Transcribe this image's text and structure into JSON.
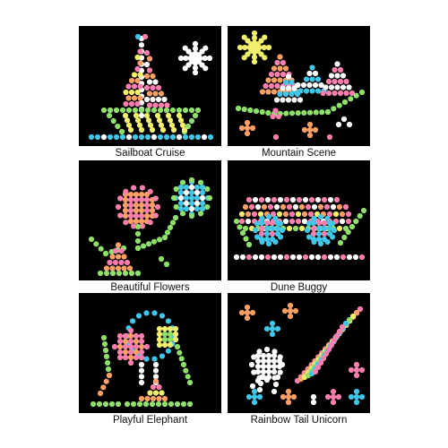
{
  "colors": {
    "background": "#ffffff",
    "panel": "#000000",
    "pink": "#ff7fb0",
    "orange": "#ffa066",
    "yellow": "#f2ef6a",
    "green": "#8fe06a",
    "blue": "#3fc6e8",
    "white": "#ffffff"
  },
  "designs": [
    {
      "name": "Sailboat Cruise",
      "art": "sailboat"
    },
    {
      "name": "Mountain Scene",
      "art": "mountain"
    },
    {
      "name": "Beautiful Flowers",
      "art": "flowers"
    },
    {
      "name": "Dune Buggy",
      "art": "buggy"
    },
    {
      "name": "Playful Elephant",
      "art": "elephant"
    },
    {
      "name": "Rainbow Tail Unicorn",
      "art": "unicorn"
    }
  ]
}
